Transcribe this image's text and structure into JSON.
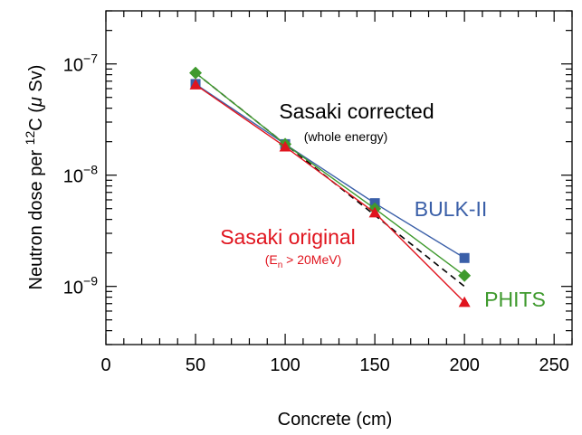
{
  "chart_data": {
    "type": "line",
    "xlabel": "Concrete (cm)",
    "ylabel": {
      "pre": "Neutron dose per ",
      "sup": "12",
      "mid": "C (",
      "mu": "μ",
      "post": " Sv)"
    },
    "xlim": [
      0,
      260
    ],
    "xticks": [
      0,
      50,
      100,
      150,
      200,
      250
    ],
    "xtick_labels": [
      "0",
      "50",
      "100",
      "150",
      "200",
      "250"
    ],
    "y_scale": "log",
    "ylim": [
      3e-10,
      3e-07
    ],
    "yticks": [
      1e-09,
      1e-08,
      1e-07
    ],
    "ytick_labels": [
      {
        "base": "10",
        "exp": "−9"
      },
      {
        "base": "10",
        "exp": "−8"
      },
      {
        "base": "10",
        "exp": "−7"
      }
    ],
    "grid": false,
    "series": [
      {
        "name": "Sasaki corrected",
        "style": "dashed",
        "color": "#000000",
        "x": [
          50,
          200
        ],
        "y": [
          8.3e-08,
          1e-09
        ]
      },
      {
        "name": "BULK-II",
        "marker": "square",
        "color": "#3a5fa8",
        "x": [
          50,
          100,
          150,
          200
        ],
        "y": [
          6.6e-08,
          1.9e-08,
          5.6e-09,
          1.8e-09
        ]
      },
      {
        "name": "PHITS",
        "marker": "diamond",
        "color": "#3f9a2e",
        "x": [
          50,
          100,
          150,
          200
        ],
        "y": [
          8.3e-08,
          1.9e-08,
          5e-09,
          1.25e-09
        ]
      },
      {
        "name": "Sasaki original",
        "marker": "triangle",
        "color": "#e0141e",
        "x": [
          50,
          100,
          150,
          200
        ],
        "y": [
          6.5e-08,
          1.8e-08,
          4.6e-09,
          7.2e-10
        ]
      }
    ],
    "annotations": {
      "sasaki_corrected": {
        "text": "Sasaki corrected",
        "sub": "(whole energy)",
        "color": "#000000"
      },
      "bulk": {
        "text": "BULK-II",
        "color": "#3a5fa8"
      },
      "phits": {
        "text": "PHITS",
        "color": "#3f9a2e"
      },
      "sasaki_original": {
        "text": "Sasaki original",
        "sub_pre": "(E",
        "sub_sub": "n",
        "sub_post": " > 20MeV)",
        "color": "#e0141e"
      }
    }
  }
}
